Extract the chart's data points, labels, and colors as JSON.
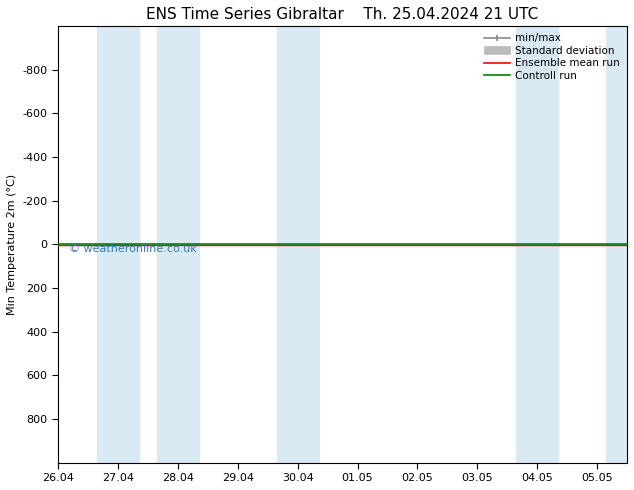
{
  "title_left": "ENS Time Series Gibraltar",
  "title_right": "Th. 25.04.2024 21 UTC",
  "ylabel": "Min Temperature 2m (°C)",
  "ylim_top": -1000,
  "ylim_bottom": 1000,
  "yticks": [
    -800,
    -600,
    -400,
    -200,
    0,
    200,
    400,
    600,
    800
  ],
  "xlim_start": 0.0,
  "xlim_end": 9.5,
  "xtick_labels": [
    "26.04",
    "27.04",
    "28.04",
    "29.04",
    "30.04",
    "01.05",
    "02.05",
    "03.05",
    "04.05",
    "05.05"
  ],
  "xtick_positions": [
    0,
    1,
    2,
    3,
    4,
    5,
    6,
    7,
    8,
    9
  ],
  "shaded_bands": [
    [
      0.65,
      1.35
    ],
    [
      1.65,
      2.35
    ],
    [
      3.65,
      4.35
    ],
    [
      7.65,
      8.35
    ],
    [
      9.15,
      9.5
    ]
  ],
  "band_color": "#daeaf5",
  "control_run_y": 0,
  "control_run_color": "#008000",
  "ensemble_mean_color": "#ff0000",
  "minmax_color": "#888888",
  "std_color": "#bbbbbb",
  "watermark_text": "© weatheronline.co.uk",
  "watermark_color": "#3377bb",
  "background_color": "#ffffff",
  "plot_bg_color": "#ffffff",
  "legend_entries": [
    "min/max",
    "Standard deviation",
    "Ensemble mean run",
    "Controll run"
  ],
  "legend_colors": [
    "#888888",
    "#bbbbbb",
    "#ff0000",
    "#008000"
  ],
  "title_fontsize": 11,
  "axis_fontsize": 8,
  "tick_fontsize": 8
}
